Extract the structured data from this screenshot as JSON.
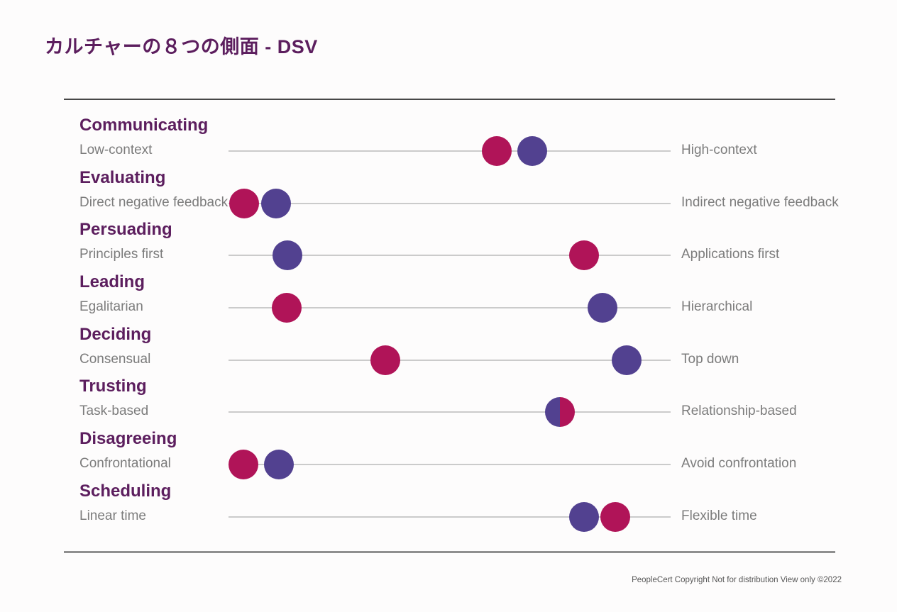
{
  "title": "カルチャーの８つの側面 -  DSV",
  "footer": "PeopleCert Copyright Not for distribution View only ©2022",
  "colors": {
    "crimson": "#b01458",
    "purple": "#524190",
    "heading_text": "#5c1e5e",
    "label_text": "#7c7c7c",
    "track_line": "#cbcbcb",
    "top_rule": "#474747",
    "bottom_rule": "#8f8f8f",
    "footer_text": "#565656"
  },
  "chart_data": {
    "type": "scatter",
    "subtype": "dumbbell-scale",
    "title": "カルチャーの８つの側面 -  DSV",
    "scale_range": [
      0,
      100
    ],
    "grid": false,
    "legend": null,
    "rows": [
      {
        "dimension": "Communicating",
        "left_label": "Low-context",
        "right_label": "High-context",
        "dots": [
          {
            "color": "crimson",
            "pos": 60.7
          },
          {
            "color": "purple",
            "pos": 68.7
          }
        ]
      },
      {
        "dimension": "Evaluating",
        "left_label": "Direct negative feedback",
        "right_label": "Indirect negative feedback",
        "dots": [
          {
            "color": "crimson",
            "pos": 3.5
          },
          {
            "color": "purple",
            "pos": 10.8
          }
        ]
      },
      {
        "dimension": "Persuading",
        "left_label": "Principles first",
        "right_label": "Applications first",
        "dots": [
          {
            "color": "purple",
            "pos": 13.3
          },
          {
            "color": "crimson",
            "pos": 80.4
          }
        ]
      },
      {
        "dimension": "Leading",
        "left_label": "Egalitarian",
        "right_label": "Hierarchical",
        "dots": [
          {
            "color": "crimson",
            "pos": 13.2
          },
          {
            "color": "purple",
            "pos": 84.6
          }
        ]
      },
      {
        "dimension": "Deciding",
        "left_label": "Consensual",
        "right_label": "Top down",
        "dots": [
          {
            "color": "crimson",
            "pos": 35.5
          },
          {
            "color": "purple",
            "pos": 90.0
          }
        ]
      },
      {
        "dimension": "Trusting",
        "left_label": "Task-based",
        "right_label": "Relationship-based",
        "dots": [
          {
            "left_half": "purple",
            "right_half": "crimson",
            "pos": 75.0
          }
        ]
      },
      {
        "dimension": "Disagreeing",
        "left_label": "Confrontational",
        "right_label": "Avoid confrontation",
        "dots": [
          {
            "color": "crimson",
            "pos": 3.4
          },
          {
            "color": "purple",
            "pos": 11.4
          }
        ]
      },
      {
        "dimension": "Scheduling",
        "left_label": "Linear time",
        "right_label": "Flexible time",
        "dots": [
          {
            "color": "purple",
            "pos": 80.4
          },
          {
            "color": "crimson",
            "pos": 87.5
          }
        ]
      }
    ]
  }
}
